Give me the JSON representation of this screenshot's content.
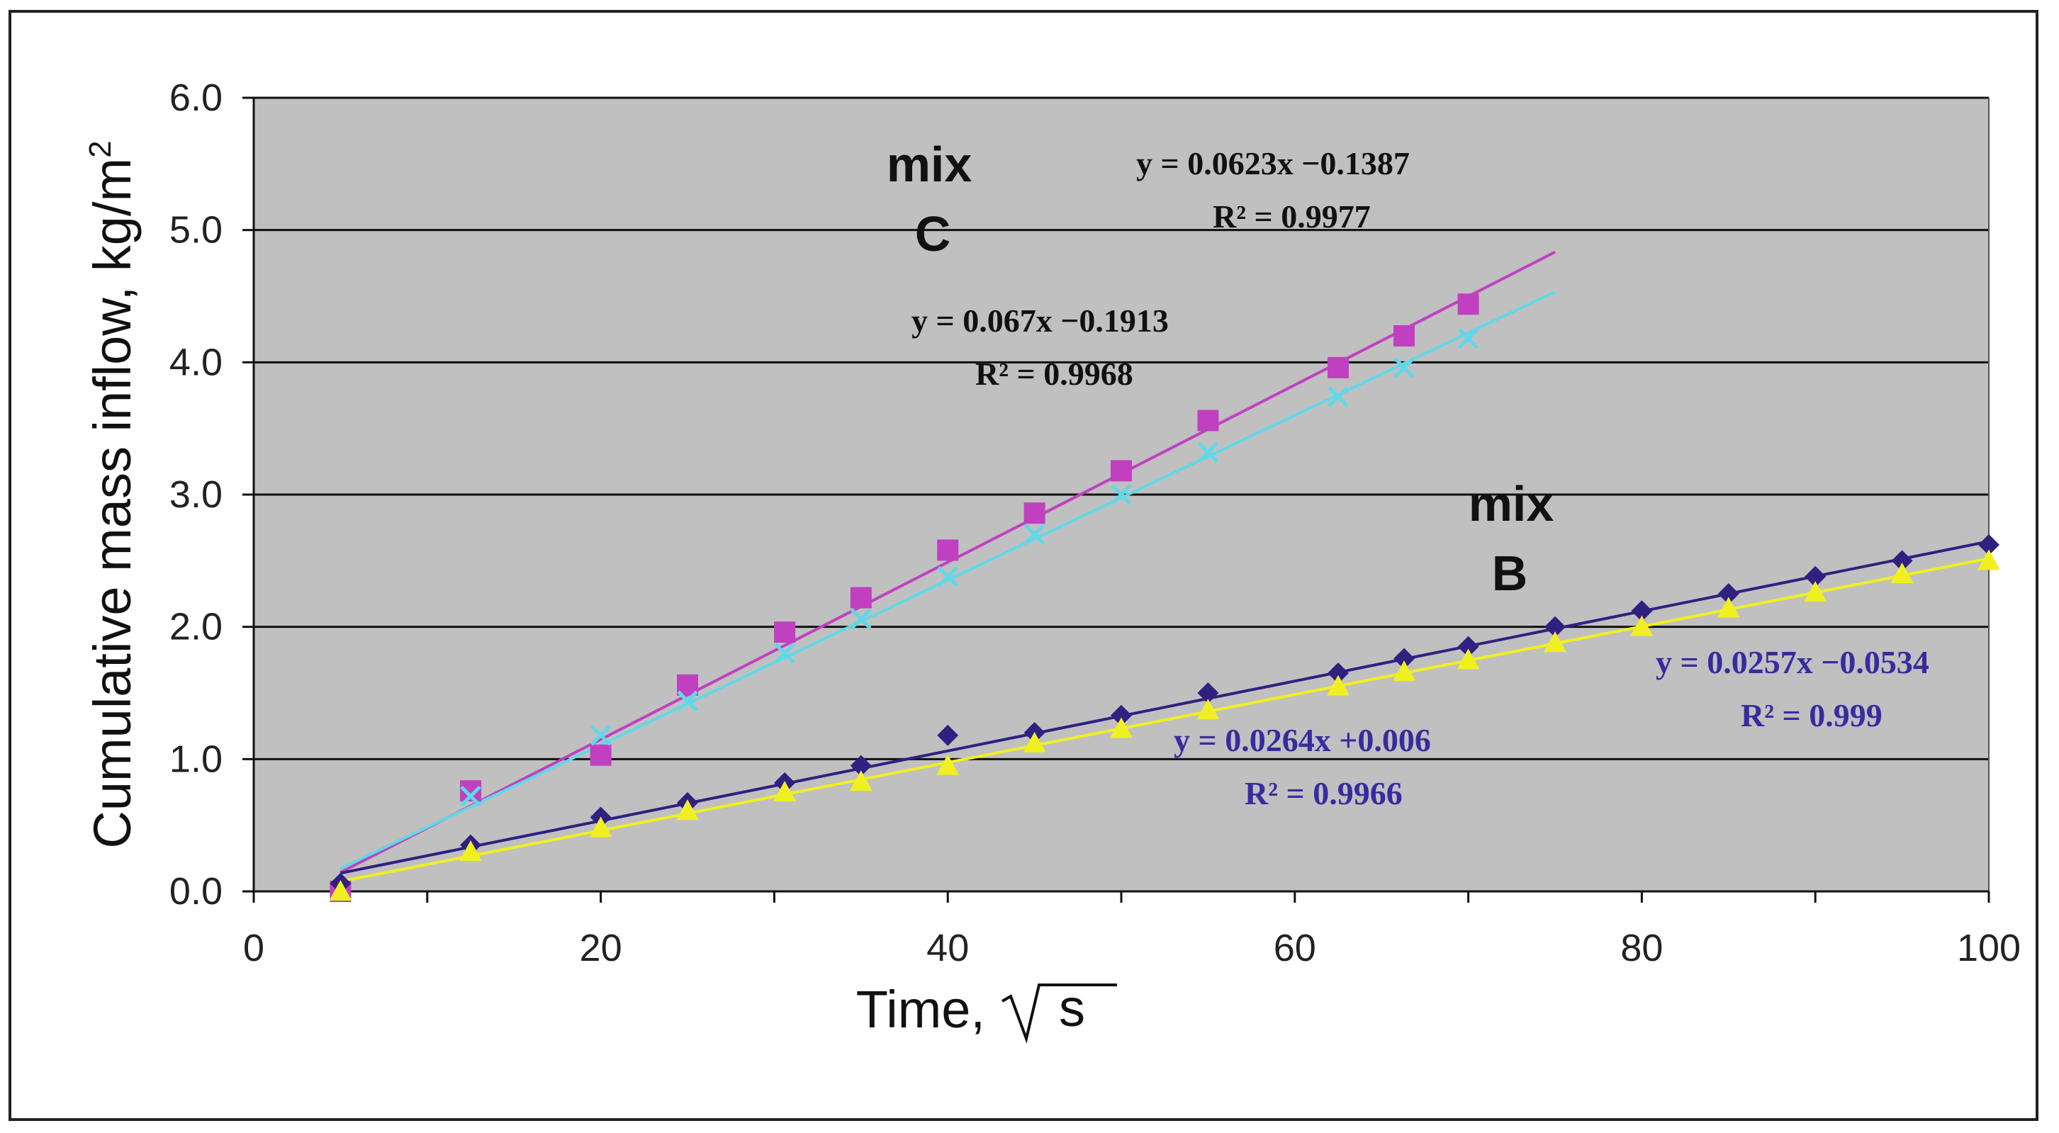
{
  "chart_data": {
    "type": "scatter",
    "title": "",
    "xlabel": "Time, √s",
    "xlabel_text": "Time,",
    "xlabel_unit": "s",
    "ylabel": "Cumulative mass inflow, kg/m²",
    "ylabel_text": "Cumulative mass inflow, kg/m",
    "ylabel_sup": "2",
    "xlim": [
      0,
      100
    ],
    "ylim": [
      0,
      6
    ],
    "xticks": [
      0,
      20,
      40,
      60,
      80,
      100
    ],
    "yticks": [
      "0.0",
      "1.0",
      "2.0",
      "3.0",
      "4.0",
      "5.0",
      "6.0"
    ],
    "plot_bg": "#c0c0c0",
    "grid": "horizontal",
    "series": [
      {
        "name": "mix C (squares)",
        "marker": "square",
        "color": "#c040c0",
        "x": [
          5,
          12.5,
          20,
          25,
          30.6,
          35,
          40,
          45,
          50,
          55,
          62.5,
          66.3,
          70
        ],
        "y": [
          0.0,
          0.76,
          1.03,
          1.56,
          1.96,
          2.22,
          2.58,
          2.86,
          3.18,
          3.56,
          3.96,
          4.2,
          4.44
        ],
        "fit": {
          "slope": 0.067,
          "intercept": -0.1913,
          "x_range": [
            5,
            75
          ]
        }
      },
      {
        "name": "mix C (crosses)",
        "marker": "x",
        "color": "#60d8e8",
        "x": [
          12.5,
          20,
          25,
          30.6,
          35,
          40,
          45,
          50,
          55,
          62.5,
          66.3,
          70
        ],
        "y": [
          0.72,
          1.18,
          1.44,
          1.8,
          2.06,
          2.38,
          2.7,
          3.0,
          3.32,
          3.74,
          3.96,
          4.18
        ],
        "fit": {
          "slope": 0.0623,
          "intercept": -0.1387,
          "x_range": [
            5,
            75
          ]
        }
      },
      {
        "name": "mix B (diamonds)",
        "marker": "diamond",
        "color": "#302080",
        "x": [
          5,
          12.5,
          20,
          25,
          30.6,
          35,
          40,
          45,
          50,
          55,
          62.5,
          66.3,
          70,
          75,
          80,
          85,
          90,
          95,
          100
        ],
        "y": [
          0.06,
          0.35,
          0.56,
          0.67,
          0.82,
          0.95,
          1.18,
          1.2,
          1.33,
          1.5,
          1.65,
          1.76,
          1.85,
          2.0,
          2.12,
          2.25,
          2.38,
          2.5,
          2.62
        ],
        "fit": {
          "slope": 0.0264,
          "intercept": 0.006,
          "x_range": [
            5,
            100
          ]
        }
      },
      {
        "name": "mix B (triangles)",
        "marker": "triangle",
        "color": "#f0f020",
        "x": [
          5,
          12.5,
          20,
          25,
          30.6,
          35,
          40,
          45,
          50,
          55,
          62.5,
          66.3,
          70,
          75,
          80,
          85,
          90,
          95,
          100
        ],
        "y": [
          0.0,
          0.3,
          0.48,
          0.61,
          0.75,
          0.83,
          0.95,
          1.12,
          1.23,
          1.37,
          1.55,
          1.66,
          1.75,
          1.88,
          2.0,
          2.14,
          2.26,
          2.4,
          2.5
        ],
        "fit": {
          "slope": 0.0257,
          "intercept": -0.0534,
          "x_range": [
            5,
            100
          ]
        }
      }
    ],
    "annotations": {
      "mix_c_word": "mix",
      "mix_c_letter": "C",
      "mix_b_word": "mix",
      "mix_b_letter": "B",
      "eq_c1": "y = 0.0623x −0.1387",
      "r2_c1": "R² = 0.9977",
      "eq_c2": "y = 0.067x −0.1913",
      "r2_c2": "R² = 0.9968",
      "eq_b1": "y = 0.0264x +0.006",
      "r2_b1": "R² = 0.9966",
      "eq_b2": "y = 0.0257x −0.0534",
      "r2_b2": "R² = 0.999"
    }
  }
}
